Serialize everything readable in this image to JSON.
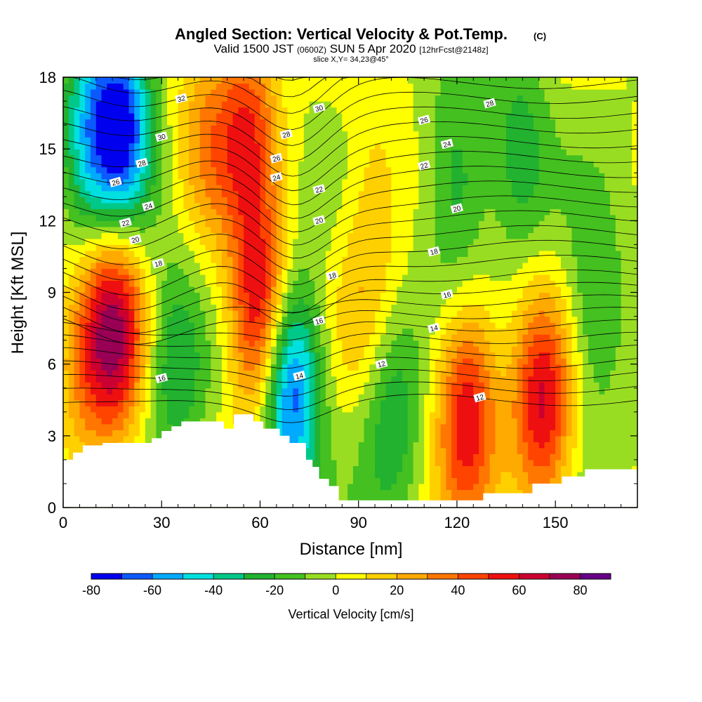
{
  "chart_data": {
    "type": "heatmap",
    "title": "Angled Section: Vertical Velocity & Pot.Temp.",
    "title_unit": "(C)",
    "subtitle_parts": [
      "Valid 1500 JST",
      "(0600Z)",
      "SUN 5 Apr 2020",
      "[12hrFcst@2148z]"
    ],
    "slice_label": "slice X,Y= 34,23@45°",
    "xlabel": "Distance [nm]",
    "ylabel": "Height [Kft MSL]",
    "xlim": [
      0,
      175
    ],
    "ylim": [
      0,
      18
    ],
    "xticks": [
      0,
      30,
      60,
      90,
      120,
      150
    ],
    "yticks": [
      0,
      3,
      6,
      9,
      12,
      15,
      18
    ],
    "colorbar": {
      "label": "Vertical Velocity [cm/s]",
      "ticks": [
        -80,
        -60,
        -40,
        -20,
        0,
        20,
        40,
        60,
        80
      ],
      "range": [
        -80,
        90
      ],
      "colors": [
        "#0000ee",
        "#0c5aff",
        "#00aaff",
        "#00e0e0",
        "#00c888",
        "#22b230",
        "#44c020",
        "#99dd22",
        "#ffff00",
        "#ffd000",
        "#ffaa00",
        "#ff7700",
        "#ff4400",
        "#ee1010",
        "#cc0030",
        "#990055",
        "#660088"
      ]
    },
    "updrafts": [
      {
        "x": 16,
        "z": 7.6,
        "w": 65
      },
      {
        "x": 60,
        "z": 8.0,
        "w": 70
      },
      {
        "x": 56,
        "z": 16.0,
        "w": 45
      },
      {
        "x": 123,
        "z": 4.2,
        "w": 60
      },
      {
        "x": 146,
        "z": 4.2,
        "w": 60
      },
      {
        "x": 7,
        "z": 5.8,
        "w": 25
      },
      {
        "x": 43,
        "z": 15.5,
        "w": 25
      },
      {
        "x": 92,
        "z": 8.5,
        "w": 15
      },
      {
        "x": 95,
        "z": 13.5,
        "w": 15
      }
    ],
    "downdrafts": [
      {
        "x": 18,
        "z": 16.0,
        "w": -70
      },
      {
        "x": 69,
        "z": 5.0,
        "w": -75
      },
      {
        "x": 120,
        "z": 13.5,
        "w": -30
      },
      {
        "x": 100,
        "z": 4.0,
        "w": -30
      },
      {
        "x": 34,
        "z": 6.0,
        "w": -30
      },
      {
        "x": 162,
        "z": 8.0,
        "w": -25
      },
      {
        "x": 8,
        "z": 16.0,
        "w": -40
      },
      {
        "x": 139,
        "z": 15.0,
        "w": -25
      }
    ],
    "pot_temp_contour_labels": [
      {
        "text": "32",
        "x": 36,
        "z": 17.1
      },
      {
        "text": "30",
        "x": 30,
        "z": 15.5
      },
      {
        "text": "28",
        "x": 24,
        "z": 14.4
      },
      {
        "text": "26",
        "x": 16,
        "z": 13.6
      },
      {
        "text": "24",
        "x": 26,
        "z": 12.6
      },
      {
        "text": "22",
        "x": 19,
        "z": 11.9
      },
      {
        "text": "20",
        "x": 22,
        "z": 11.2
      },
      {
        "text": "18",
        "x": 29,
        "z": 10.2
      },
      {
        "text": "16",
        "x": 30,
        "z": 5.4
      },
      {
        "text": "28",
        "x": 68,
        "z": 15.6
      },
      {
        "text": "26",
        "x": 65,
        "z": 14.6
      },
      {
        "text": "24",
        "x": 65,
        "z": 13.8
      },
      {
        "text": "30",
        "x": 78,
        "z": 16.7
      },
      {
        "text": "22",
        "x": 78,
        "z": 13.3
      },
      {
        "text": "20",
        "x": 78,
        "z": 12.0
      },
      {
        "text": "18",
        "x": 82,
        "z": 9.7
      },
      {
        "text": "16",
        "x": 78,
        "z": 7.8
      },
      {
        "text": "14",
        "x": 72,
        "z": 5.5
      },
      {
        "text": "12",
        "x": 97,
        "z": 6.0
      },
      {
        "text": "26",
        "x": 110,
        "z": 16.2
      },
      {
        "text": "24",
        "x": 117,
        "z": 15.2
      },
      {
        "text": "22",
        "x": 110,
        "z": 14.3
      },
      {
        "text": "28",
        "x": 130,
        "z": 16.9
      },
      {
        "text": "20",
        "x": 120,
        "z": 12.5
      },
      {
        "text": "18",
        "x": 113,
        "z": 10.7
      },
      {
        "text": "16",
        "x": 117,
        "z": 8.9
      },
      {
        "text": "14",
        "x": 113,
        "z": 7.5
      },
      {
        "text": "12",
        "x": 127,
        "z": 4.6
      }
    ],
    "terrain": [
      [
        0,
        2.0
      ],
      [
        3,
        2.0
      ],
      [
        3,
        2.3
      ],
      [
        6,
        2.3
      ],
      [
        6,
        2.6
      ],
      [
        12,
        2.6
      ],
      [
        12,
        2.7
      ],
      [
        27,
        2.7
      ],
      [
        27,
        2.9
      ],
      [
        30,
        2.9
      ],
      [
        30,
        3.2
      ],
      [
        33,
        3.2
      ],
      [
        33,
        3.4
      ],
      [
        36,
        3.4
      ],
      [
        36,
        3.6
      ],
      [
        49,
        3.6
      ],
      [
        49,
        3.3
      ],
      [
        52,
        3.3
      ],
      [
        52,
        3.9
      ],
      [
        58,
        3.9
      ],
      [
        58,
        3.6
      ],
      [
        61,
        3.6
      ],
      [
        61,
        3.3
      ],
      [
        66,
        3.3
      ],
      [
        66,
        3.0
      ],
      [
        69,
        3.0
      ],
      [
        69,
        2.7
      ],
      [
        74,
        2.7
      ],
      [
        74,
        2.0
      ],
      [
        76,
        2.0
      ],
      [
        76,
        1.7
      ],
      [
        78,
        1.7
      ],
      [
        78,
        1.2
      ],
      [
        81,
        1.2
      ],
      [
        81,
        0.9
      ],
      [
        84,
        0.9
      ],
      [
        84,
        0.3
      ],
      [
        128,
        0.3
      ],
      [
        128,
        0.6
      ],
      [
        143,
        0.6
      ],
      [
        143,
        1.0
      ],
      [
        152,
        1.0
      ],
      [
        152,
        1.3
      ],
      [
        159,
        1.3
      ],
      [
        159,
        1.6
      ],
      [
        175,
        1.6
      ]
    ]
  }
}
